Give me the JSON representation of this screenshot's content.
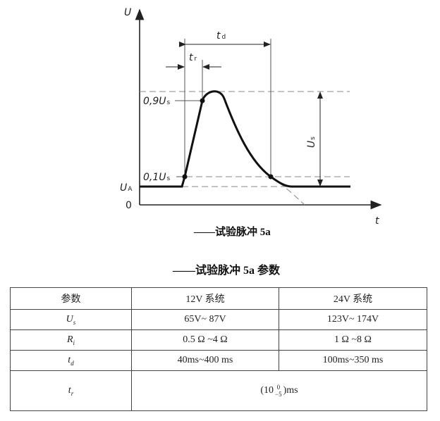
{
  "figure": {
    "labels": {
      "y_axis": "U",
      "x_axis": "t",
      "td": "t",
      "td_sub": "d",
      "tr": "t",
      "tr_sub": "r",
      "p90": "0,9U",
      "p90_sub": "s",
      "p10": "0,1U",
      "p10_sub": "s",
      "ua": "U",
      "ua_sub": "A",
      "zero": "0",
      "us": "U",
      "us_sub": "s"
    },
    "caption": "——试验脉冲 5a"
  },
  "table": {
    "title": "——试验脉冲 5a 参数",
    "headers": [
      "参数",
      "12V 系统",
      "24V 系统"
    ],
    "rows": [
      {
        "param": "U",
        "sub": "s",
        "v12": "65V~ 87V",
        "v24": "123V~ 174V"
      },
      {
        "param": "R",
        "sub": "i",
        "v12": "0.5 Ω ~4 Ω",
        "v24": "1 Ω ~8 Ω"
      },
      {
        "param": "t",
        "sub": "d",
        "v12": "40ms~400 ms",
        "v24": "100ms~350 ms"
      }
    ],
    "tr_row": {
      "param": "t",
      "sub": "r",
      "value_pre": "(10",
      "sup": "0",
      "subv": "−5",
      "value_post": ")ms"
    }
  }
}
